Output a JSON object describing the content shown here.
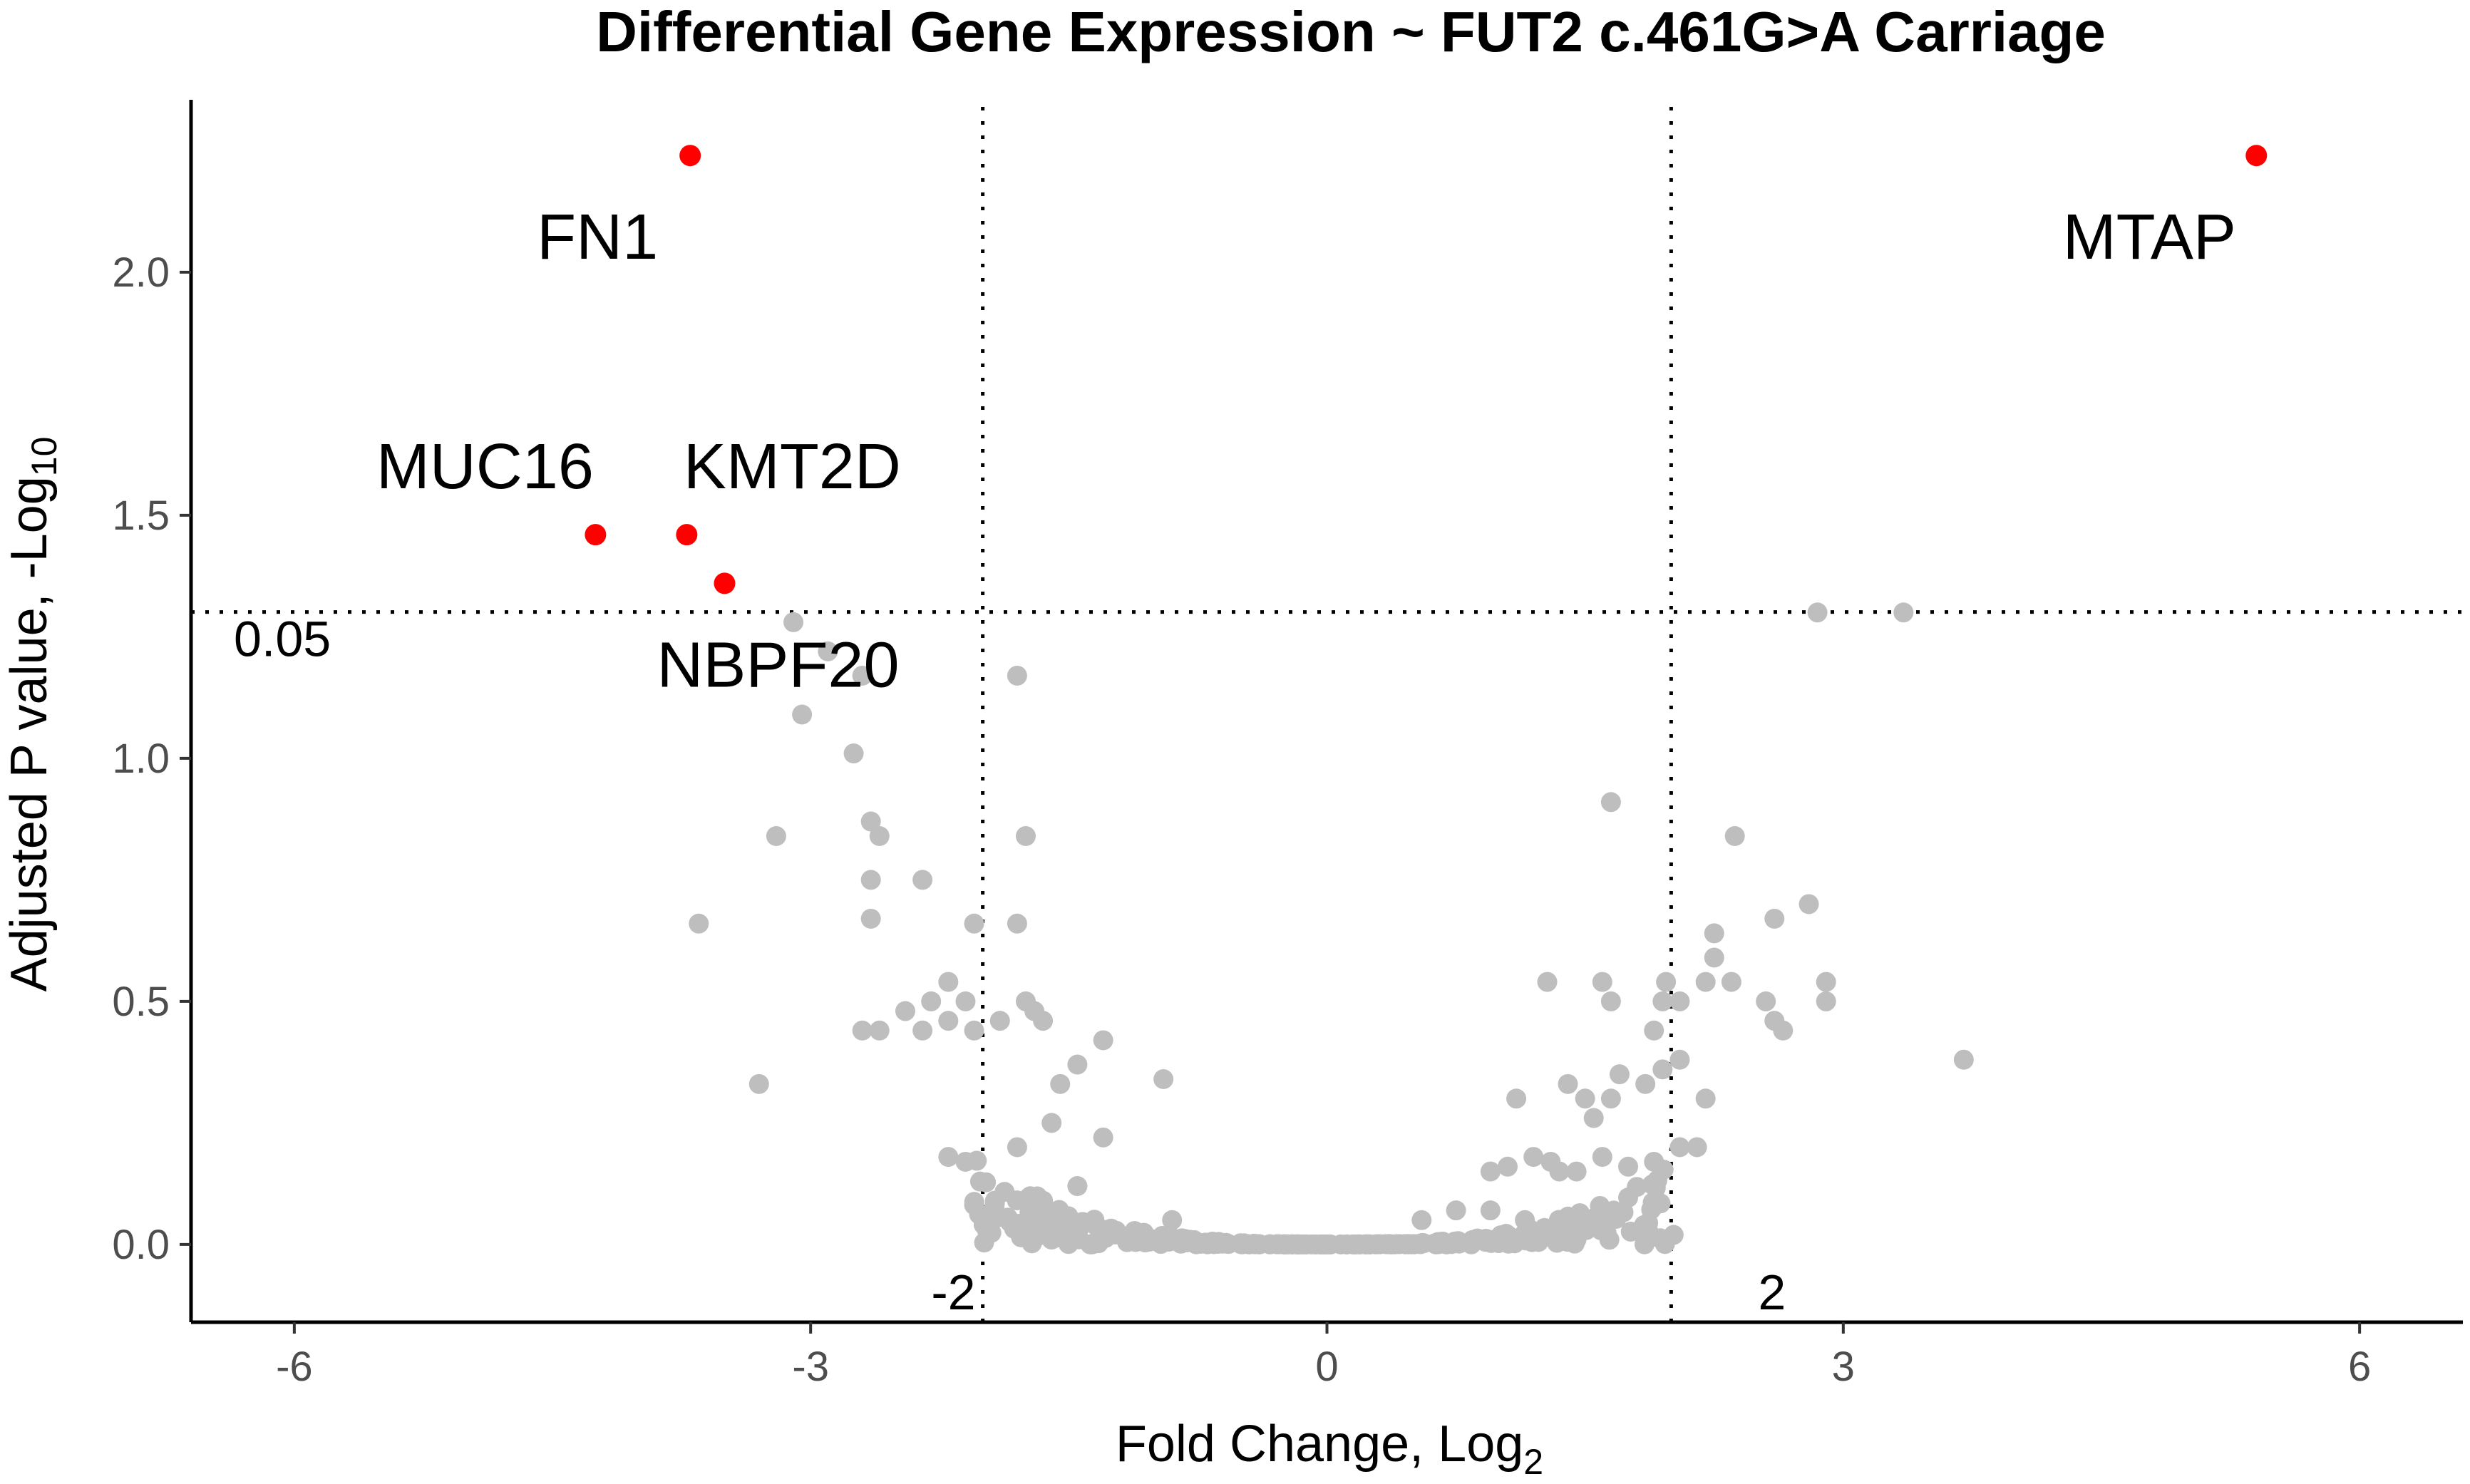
{
  "chart_data": {
    "type": "scatter",
    "title": "Differential Gene Expression ~ FUT2 c.461G>A Carriage",
    "xlabel": "Fold Change, Log",
    "xlabel_sub": "2",
    "ylabel": "Adjusted P value, -Log",
    "ylabel_sub": "10",
    "xlim": [
      -6.6,
      6.6
    ],
    "ylim": [
      -0.16,
      2.34
    ],
    "x_ticks": [
      {
        "value": -6,
        "label": "-6"
      },
      {
        "value": -3,
        "label": "-3"
      },
      {
        "value": 0,
        "label": "0"
      },
      {
        "value": 3,
        "label": "3"
      },
      {
        "value": 6,
        "label": "6"
      }
    ],
    "y_ticks": [
      {
        "value": 0,
        "label": "0.0"
      },
      {
        "value": 0.5,
        "label": "0.5"
      },
      {
        "value": 1,
        "label": "1.0"
      },
      {
        "value": 1.5,
        "label": "1.5"
      },
      {
        "value": 2,
        "label": "2.0"
      }
    ],
    "grid": false,
    "thresholds": {
      "fold_change_left": -2,
      "fold_change_left_label": "-2",
      "fold_change_right": 2,
      "fold_change_right_label": "2",
      "p_value_neglog10": 1.30103,
      "p_value_label": "0.05"
    },
    "colors": {
      "significant": "#ff0000",
      "not_significant": "#bebebe"
    },
    "significant_points": [
      {
        "gene": "FN1",
        "x": -3.7,
        "y": 2.24
      },
      {
        "gene": "MTAP",
        "x": 5.4,
        "y": 2.24
      },
      {
        "gene": "MUC16",
        "x": -4.25,
        "y": 1.46
      },
      {
        "gene": "KMT2D",
        "x": -3.72,
        "y": 1.46
      },
      {
        "gene": "NBPF20",
        "x": -3.5,
        "y": 1.36
      }
    ],
    "non_significant_points": [
      [
        2.85,
        1.3
      ],
      [
        3.35,
        1.3
      ],
      [
        -3.1,
        1.28
      ],
      [
        -2.9,
        1.22
      ],
      [
        -2.7,
        1.17
      ],
      [
        -1.8,
        1.17
      ],
      [
        -3.05,
        1.09
      ],
      [
        -2.75,
        1.01
      ],
      [
        1.65,
        0.91
      ],
      [
        -3.2,
        0.84
      ],
      [
        -2.65,
        0.87
      ],
      [
        -2.6,
        0.84
      ],
      [
        -1.75,
        0.84
      ],
      [
        2.37,
        0.84
      ],
      [
        -2.65,
        0.75
      ],
      [
        -2.35,
        0.75
      ],
      [
        2.8,
        0.7
      ],
      [
        2.6,
        0.67
      ],
      [
        -3.65,
        0.66
      ],
      [
        -2.65,
        0.67
      ],
      [
        -2.05,
        0.66
      ],
      [
        -1.8,
        0.66
      ],
      [
        2.25,
        0.64
      ],
      [
        2.25,
        0.59
      ],
      [
        2.9,
        0.54
      ],
      [
        2.35,
        0.54
      ],
      [
        2.2,
        0.54
      ],
      [
        1.97,
        0.54
      ],
      [
        1.6,
        0.54
      ],
      [
        1.28,
        0.54
      ],
      [
        -2.2,
        0.54
      ],
      [
        -2.3,
        0.5
      ],
      [
        -2.1,
        0.5
      ],
      [
        -2.45,
        0.48
      ],
      [
        -2.2,
        0.46
      ],
      [
        -2.05,
        0.44
      ],
      [
        -2.35,
        0.44
      ],
      [
        -2.6,
        0.44
      ],
      [
        -2.7,
        0.44
      ],
      [
        -1.75,
        0.5
      ],
      [
        -1.7,
        0.48
      ],
      [
        -1.65,
        0.46
      ],
      [
        -1.9,
        0.46
      ],
      [
        1.65,
        0.5
      ],
      [
        1.9,
        0.44
      ],
      [
        1.95,
        0.5
      ],
      [
        2.05,
        0.5
      ],
      [
        2.55,
        0.5
      ],
      [
        2.65,
        0.44
      ],
      [
        2.6,
        0.46
      ],
      [
        2.9,
        0.5
      ],
      [
        3.7,
        0.38
      ],
      [
        2.05,
        0.38
      ],
      [
        1.95,
        0.36
      ],
      [
        1.85,
        0.33
      ],
      [
        -3.3,
        0.33
      ],
      [
        -0.95,
        0.34
      ],
      [
        -1.3,
        0.42
      ],
      [
        -1.45,
        0.37
      ],
      [
        -1.55,
        0.33
      ],
      [
        1.4,
        0.33
      ],
      [
        1.5,
        0.3
      ],
      [
        1.65,
        0.3
      ],
      [
        1.7,
        0.35
      ],
      [
        2.2,
        0.3
      ],
      [
        1.1,
        0.3
      ],
      [
        1.55,
        0.26
      ],
      [
        -2.2,
        0.18
      ],
      [
        -2.1,
        0.17
      ],
      [
        -1.8,
        0.2
      ],
      [
        -1.6,
        0.25
      ],
      [
        -1.3,
        0.22
      ],
      [
        2.05,
        0.2
      ],
      [
        2.15,
        0.2
      ],
      [
        1.9,
        0.17
      ],
      [
        1.75,
        0.16
      ],
      [
        1.6,
        0.18
      ],
      [
        1.45,
        0.15
      ],
      [
        1.35,
        0.15
      ],
      [
        1.3,
        0.17
      ],
      [
        1.2,
        0.18
      ],
      [
        1.05,
        0.16
      ],
      [
        0.95,
        0.15
      ],
      [
        -1.45,
        0.12
      ],
      [
        -1.65,
        0.09
      ],
      [
        -1.55,
        0.06
      ],
      [
        -1.6,
        0.01
      ],
      [
        1.45,
        0.01
      ],
      [
        1.15,
        0.05
      ],
      [
        0.95,
        0.07
      ],
      [
        0.75,
        0.07
      ],
      [
        0.55,
        0.05
      ],
      [
        -0.9,
        0.05
      ]
    ]
  }
}
